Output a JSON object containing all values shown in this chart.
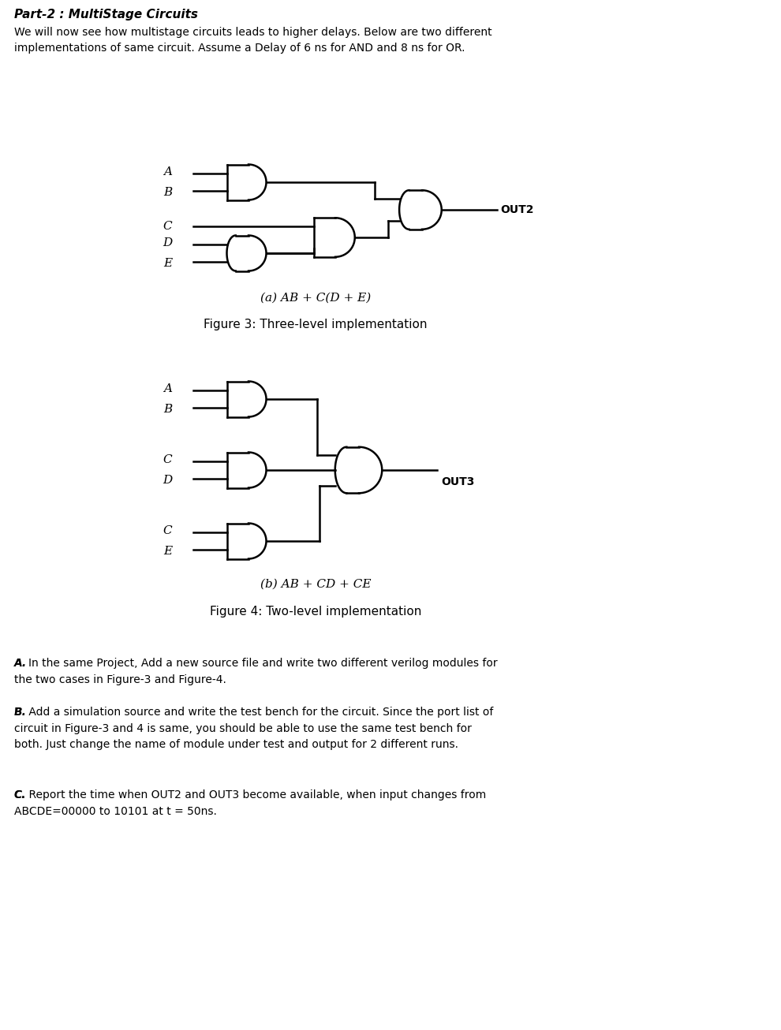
{
  "title": "Part-2 : MultiStage Circuits",
  "intro_text": "We will now see how multistage circuits leads to higher delays. Below are two different\nimplementations of same circuit. Assume a Delay of 6 ns for AND and 8 ns for OR.",
  "fig3_caption": "(a) AB + C(D + E)",
  "fig3_label": "Figure 3: Three-level implementation",
  "fig4_caption": "(b) AB + CD + CE",
  "fig4_label": "Figure 4: Two-level implementation",
  "text_A": "A. In the same Project, Add a new source file and write two different verilog modules for\nthe two cases in Figure-3 and Figure-4.",
  "text_B": "B. Add a simulation source and write the test bench for the circuit. Since the port list of\ncircuit in Figure-3 and 4 is same, you should be able to use the same test bench for\nboth. Just change the name of module under test and output for 2 different runs.",
  "text_C": "C. Report the time when OUT2 and OUT3 become available, when input changes from\nABCDE=00000 to 10101 at t = 50ns.",
  "bg_color": "#ffffff",
  "line_color": "#000000",
  "lw": 1.8
}
